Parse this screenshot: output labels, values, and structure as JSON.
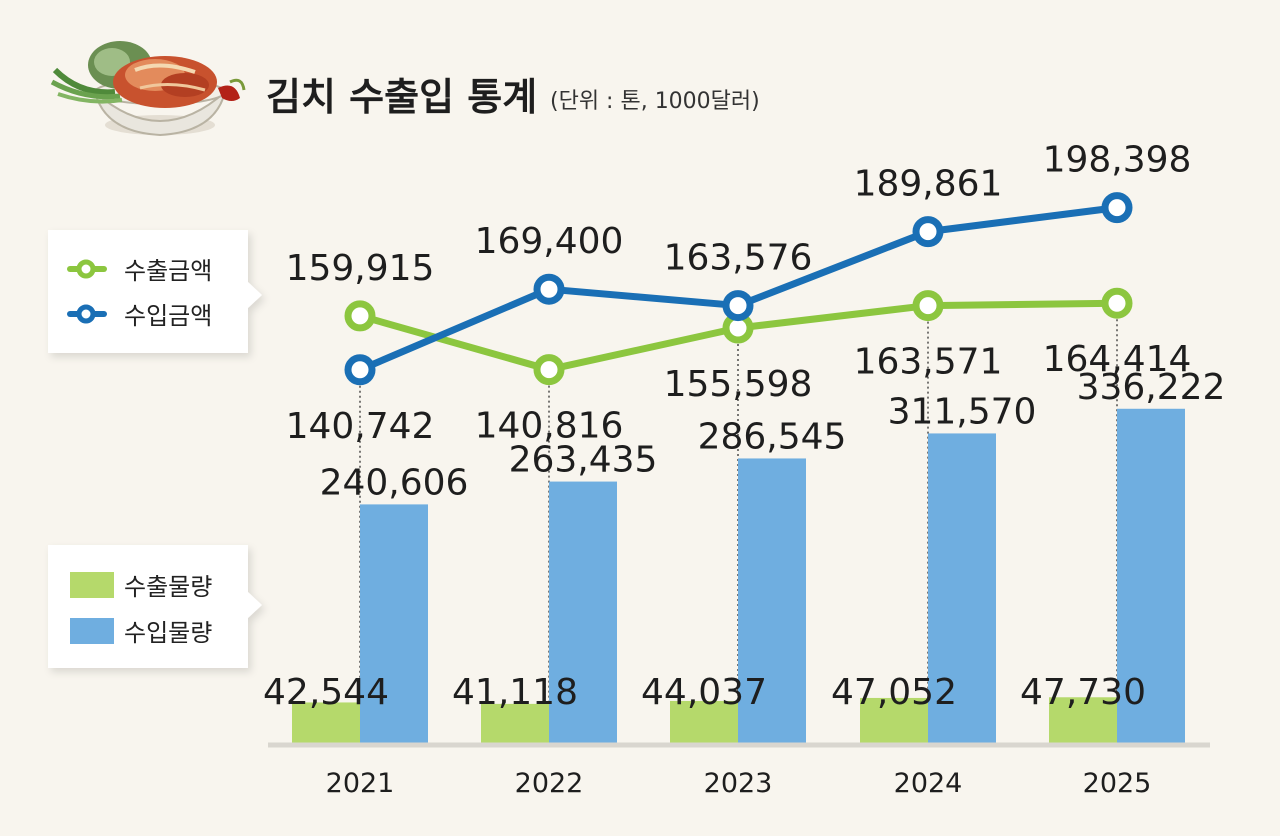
{
  "header": {
    "title": "김치 수출입 통계",
    "unit": "(단위 : 톤, 1000달러)"
  },
  "legend_top": {
    "items": [
      {
        "label": "수출금액",
        "color": "#8cc63f"
      },
      {
        "label": "수입금액",
        "color": "#1a6fb5"
      }
    ]
  },
  "legend_bottom": {
    "items": [
      {
        "label": "수출물량",
        "color": "#b5d96b"
      },
      {
        "label": "수입물량",
        "color": "#6faee0"
      }
    ]
  },
  "chart_data": [
    {
      "type": "line",
      "x": [
        "2021",
        "2022",
        "2023",
        "2024",
        "2025"
      ],
      "series": [
        {
          "name": "수출금액",
          "values": [
            159915,
            140816,
            155598,
            163571,
            164414
          ],
          "labels": [
            "159,915",
            "140,816",
            "155,598",
            "163,571",
            "164,414"
          ],
          "color": "#8cc63f"
        },
        {
          "name": "수입금액",
          "values": [
            140742,
            169400,
            163576,
            189861,
            198398
          ],
          "labels": [
            "140,742",
            "169,400",
            "163,576",
            "189,861",
            "198,398"
          ],
          "color": "#1a6fb5"
        }
      ]
    },
    {
      "type": "bar",
      "categories": [
        "2021",
        "2022",
        "2023",
        "2024",
        "2025"
      ],
      "series": [
        {
          "name": "수출물량",
          "values": [
            42544,
            41118,
            44037,
            47052,
            47730
          ],
          "labels": [
            "42,544",
            "41,118",
            "44,037",
            "47,052",
            "47,730"
          ],
          "color": "#b5d96b"
        },
        {
          "name": "수입물량",
          "values": [
            240606,
            263435,
            286545,
            311570,
            336222
          ],
          "labels": [
            "240,606",
            "263,435",
            "286,545",
            "311,570",
            "336,222"
          ],
          "color": "#6faee0"
        }
      ]
    }
  ]
}
